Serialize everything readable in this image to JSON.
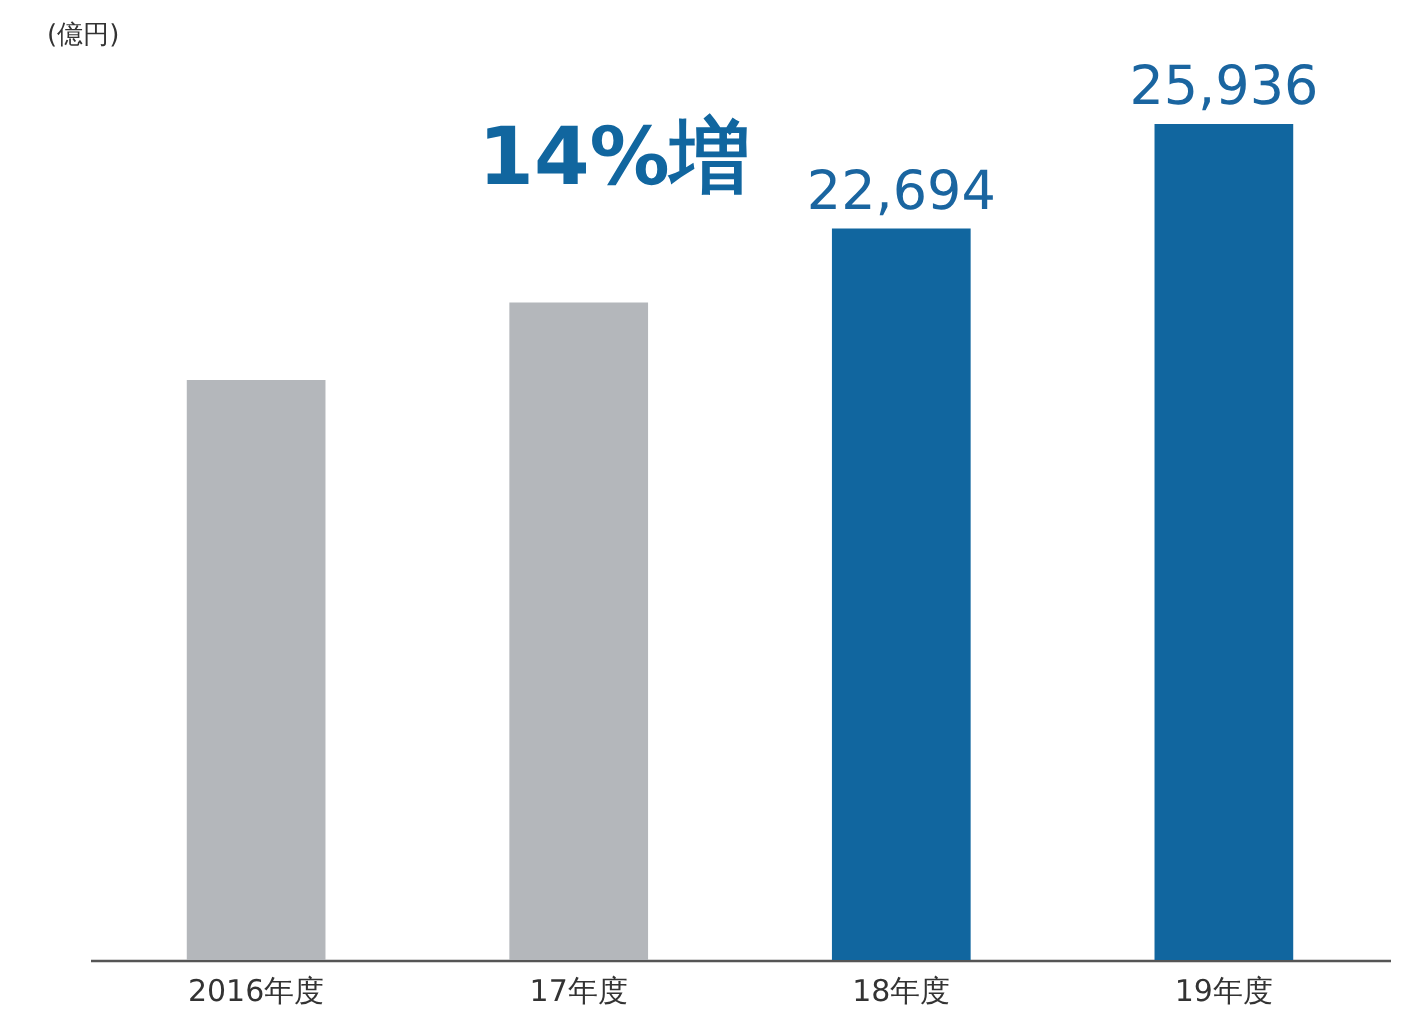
{
  "chart_data": {
    "type": "bar",
    "ylabel": "(億円)",
    "annotations": [
      "14%増"
    ],
    "categories": [
      "2016年度",
      "17年度",
      "18年度",
      "19年度"
    ],
    "values": [
      17990,
      20400,
      22694,
      25936
    ],
    "value_labels": [
      null,
      null,
      "22,694",
      "25,936"
    ],
    "colors": [
      "#b4b7bb",
      "#b4b7bb",
      "#11669f",
      "#11669f"
    ],
    "tick_labels": "x"
  }
}
